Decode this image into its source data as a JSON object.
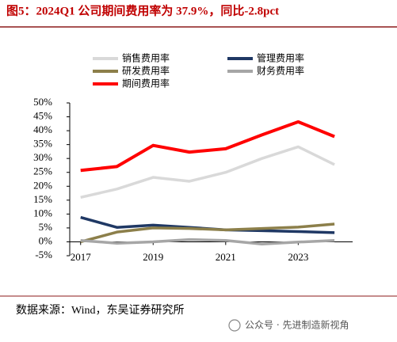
{
  "chart_data": {
    "type": "line",
    "title": "图5：2024Q1 公司期间费用率为 37.9%，同比-2.8pct",
    "source": "数据来源：Wind，东吴证券研究所",
    "watermark": "公众号 · 先进制造新视角",
    "x": [
      2017,
      2018,
      2019,
      2020,
      2021,
      2022,
      2023,
      2024
    ],
    "xlim": [
      2016.7,
      2024.5
    ],
    "xticks": [
      2017,
      2019,
      2021,
      2023
    ],
    "ylim": [
      -5,
      50
    ],
    "yticks": [
      {
        "value": -5,
        "label": "-5%"
      },
      {
        "value": 0,
        "label": "0%"
      },
      {
        "value": 5,
        "label": "5%"
      },
      {
        "value": 10,
        "label": "10%"
      },
      {
        "value": 15,
        "label": "15%"
      },
      {
        "value": 20,
        "label": "20%"
      },
      {
        "value": 25,
        "label": "25%"
      },
      {
        "value": 30,
        "label": "30%"
      },
      {
        "value": 35,
        "label": "35%"
      },
      {
        "value": 40,
        "label": "40%"
      },
      {
        "value": 45,
        "label": "45%"
      },
      {
        "value": 50,
        "label": "50%"
      }
    ],
    "grid": false,
    "series": [
      {
        "name": "销售费用率",
        "color": "#d9d9d9",
        "values": [
          16,
          19,
          23.2,
          21.8,
          25,
          30,
          34.2,
          27.8
        ]
      },
      {
        "name": "管理费用率",
        "color": "#1f3864",
        "values": [
          8.8,
          5.2,
          6,
          5.2,
          4.3,
          4,
          3.7,
          3.3
        ]
      },
      {
        "name": "研发费用率",
        "color": "#8c7f4a",
        "values": [
          0,
          3.5,
          5,
          4.8,
          4.3,
          4.8,
          5.3,
          6.4
        ]
      },
      {
        "name": "财务费用率",
        "color": "#a6a6a6",
        "values": [
          0.5,
          -0.5,
          0,
          0.8,
          0.5,
          -0.8,
          -0.1,
          0.5
        ]
      },
      {
        "name": "期间费用率",
        "color": "#ff0000",
        "values": [
          25.7,
          27.1,
          34.7,
          32.3,
          33.5,
          38.5,
          43.2,
          37.9
        ]
      }
    ]
  }
}
